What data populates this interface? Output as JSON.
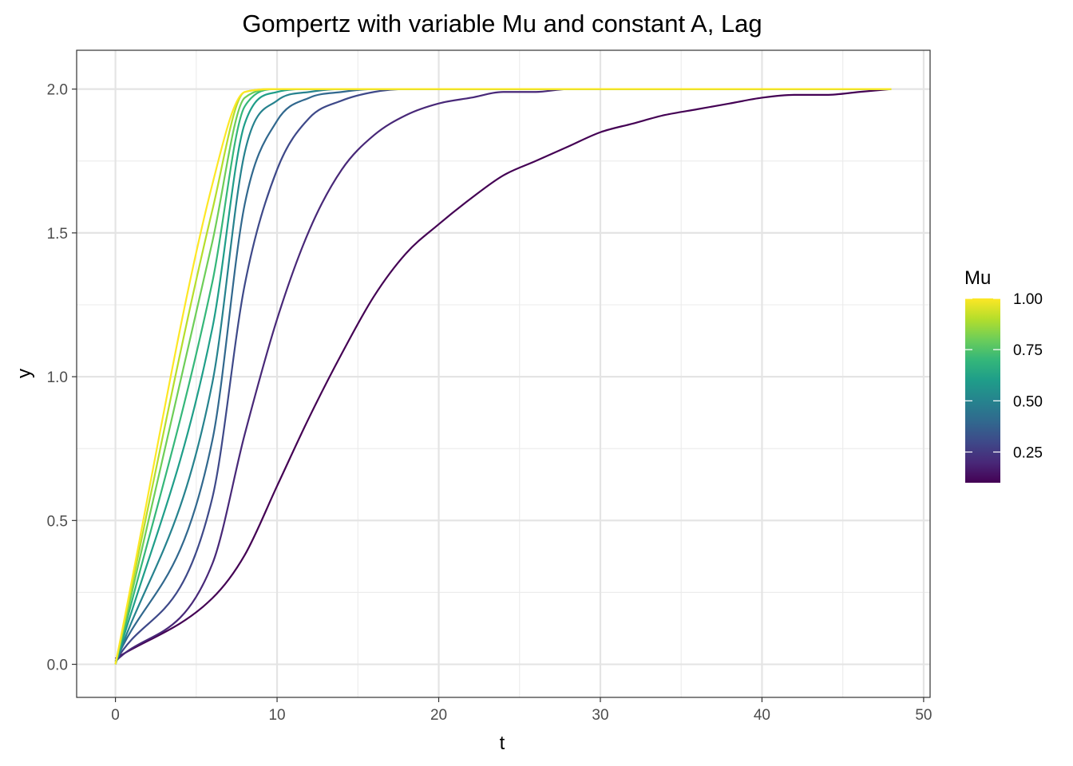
{
  "chart_data": {
    "type": "line",
    "title": "Gompertz with variable Mu and constant A, Lag",
    "xlabel": "t",
    "ylabel": "y",
    "xlim": [
      -2.4,
      50.4
    ],
    "ylim": [
      -0.115,
      2.135
    ],
    "x_ticks": [
      0,
      10,
      20,
      30,
      40,
      50
    ],
    "y_ticks": [
      0.0,
      0.5,
      1.0,
      1.5,
      2.0
    ],
    "x_tick_labels": [
      "0",
      "10",
      "20",
      "30",
      "40",
      "50"
    ],
    "y_tick_labels": [
      "0.0",
      "0.5",
      "1.0",
      "1.5",
      "2.0"
    ],
    "grid": true,
    "legend": {
      "title": "Mu",
      "position": "right",
      "type": "colorbar",
      "range": [
        0.1,
        1.0
      ],
      "ticks": [
        0.25,
        0.5,
        0.75,
        1.0
      ],
      "tick_labels": [
        "0.25",
        "0.50",
        "0.75",
        "1.00"
      ]
    },
    "colormap": [
      "#440154",
      "#482878",
      "#3e4989",
      "#31688e",
      "#26828e",
      "#1f9e89",
      "#35b779",
      "#6ece58",
      "#b5de2b",
      "#fde725"
    ],
    "x": [
      0,
      6,
      8,
      10,
      12,
      14,
      16,
      18,
      20,
      22,
      24,
      26,
      28,
      30,
      32,
      34,
      36,
      38,
      40,
      42,
      44,
      46,
      48
    ],
    "series": [
      {
        "mu": 0.1,
        "color": "#440154",
        "y": [
          0.02,
          0.23,
          0.38,
          0.62,
          0.86,
          1.08,
          1.28,
          1.43,
          1.53,
          1.62,
          1.7,
          1.75,
          1.8,
          1.85,
          1.88,
          1.91,
          1.93,
          1.95,
          1.97,
          1.98,
          1.98,
          1.99,
          2.0
        ]
      },
      {
        "mu": 0.2,
        "color": "#482878",
        "y": [
          0.01,
          0.35,
          0.8,
          1.2,
          1.51,
          1.72,
          1.84,
          1.91,
          1.95,
          1.97,
          1.99,
          1.99,
          2.0,
          2.0,
          2.0,
          2.0,
          2.0,
          2.0,
          2.0,
          2.0,
          2.0,
          2.0,
          2.0
        ]
      },
      {
        "mu": 0.3,
        "color": "#3e4989",
        "y": [
          0.01,
          0.58,
          1.32,
          1.72,
          1.9,
          1.96,
          1.99,
          2.0,
          2.0,
          2.0,
          2.0,
          2.0,
          2.0,
          2.0,
          2.0,
          2.0,
          2.0,
          2.0,
          2.0,
          2.0,
          2.0,
          2.0,
          2.0
        ]
      },
      {
        "mu": 0.4,
        "color": "#31688e",
        "y": [
          0.01,
          0.78,
          1.6,
          1.89,
          1.97,
          1.99,
          2.0,
          2.0,
          2.0,
          2.0,
          2.0,
          2.0,
          2.0,
          2.0,
          2.0,
          2.0,
          2.0,
          2.0,
          2.0,
          2.0,
          2.0,
          2.0,
          2.0
        ]
      },
      {
        "mu": 0.5,
        "color": "#26828e",
        "y": [
          0.0,
          0.98,
          1.78,
          1.96,
          1.99,
          2.0,
          2.0,
          2.0,
          2.0,
          2.0,
          2.0,
          2.0,
          2.0,
          2.0,
          2.0,
          2.0,
          2.0,
          2.0,
          2.0,
          2.0,
          2.0,
          2.0,
          2.0
        ]
      },
      {
        "mu": 0.6,
        "color": "#1f9e89",
        "y": [
          0.0,
          1.17,
          1.88,
          1.99,
          2.0,
          2.0,
          2.0,
          2.0,
          2.0,
          2.0,
          2.0,
          2.0,
          2.0,
          2.0,
          2.0,
          2.0,
          2.0,
          2.0,
          2.0,
          2.0,
          2.0,
          2.0,
          2.0
        ]
      },
      {
        "mu": 0.7,
        "color": "#35b779",
        "y": [
          0.0,
          1.33,
          1.94,
          2.0,
          2.0,
          2.0,
          2.0,
          2.0,
          2.0,
          2.0,
          2.0,
          2.0,
          2.0,
          2.0,
          2.0,
          2.0,
          2.0,
          2.0,
          2.0,
          2.0,
          2.0,
          2.0,
          2.0
        ]
      },
      {
        "mu": 0.8,
        "color": "#6ece58",
        "y": [
          0.0,
          1.47,
          1.97,
          2.0,
          2.0,
          2.0,
          2.0,
          2.0,
          2.0,
          2.0,
          2.0,
          2.0,
          2.0,
          2.0,
          2.0,
          2.0,
          2.0,
          2.0,
          2.0,
          2.0,
          2.0,
          2.0,
          2.0
        ]
      },
      {
        "mu": 0.9,
        "color": "#b5de2b",
        "y": [
          0.0,
          1.58,
          1.99,
          2.0,
          2.0,
          2.0,
          2.0,
          2.0,
          2.0,
          2.0,
          2.0,
          2.0,
          2.0,
          2.0,
          2.0,
          2.0,
          2.0,
          2.0,
          2.0,
          2.0,
          2.0,
          2.0,
          2.0
        ]
      },
      {
        "mu": 1.0,
        "color": "#fde725",
        "y": [
          0.0,
          1.67,
          1.99,
          2.0,
          2.0,
          2.0,
          2.0,
          2.0,
          2.0,
          2.0,
          2.0,
          2.0,
          2.0,
          2.0,
          2.0,
          2.0,
          2.0,
          2.0,
          2.0,
          2.0,
          2.0,
          2.0,
          2.0
        ]
      }
    ]
  }
}
